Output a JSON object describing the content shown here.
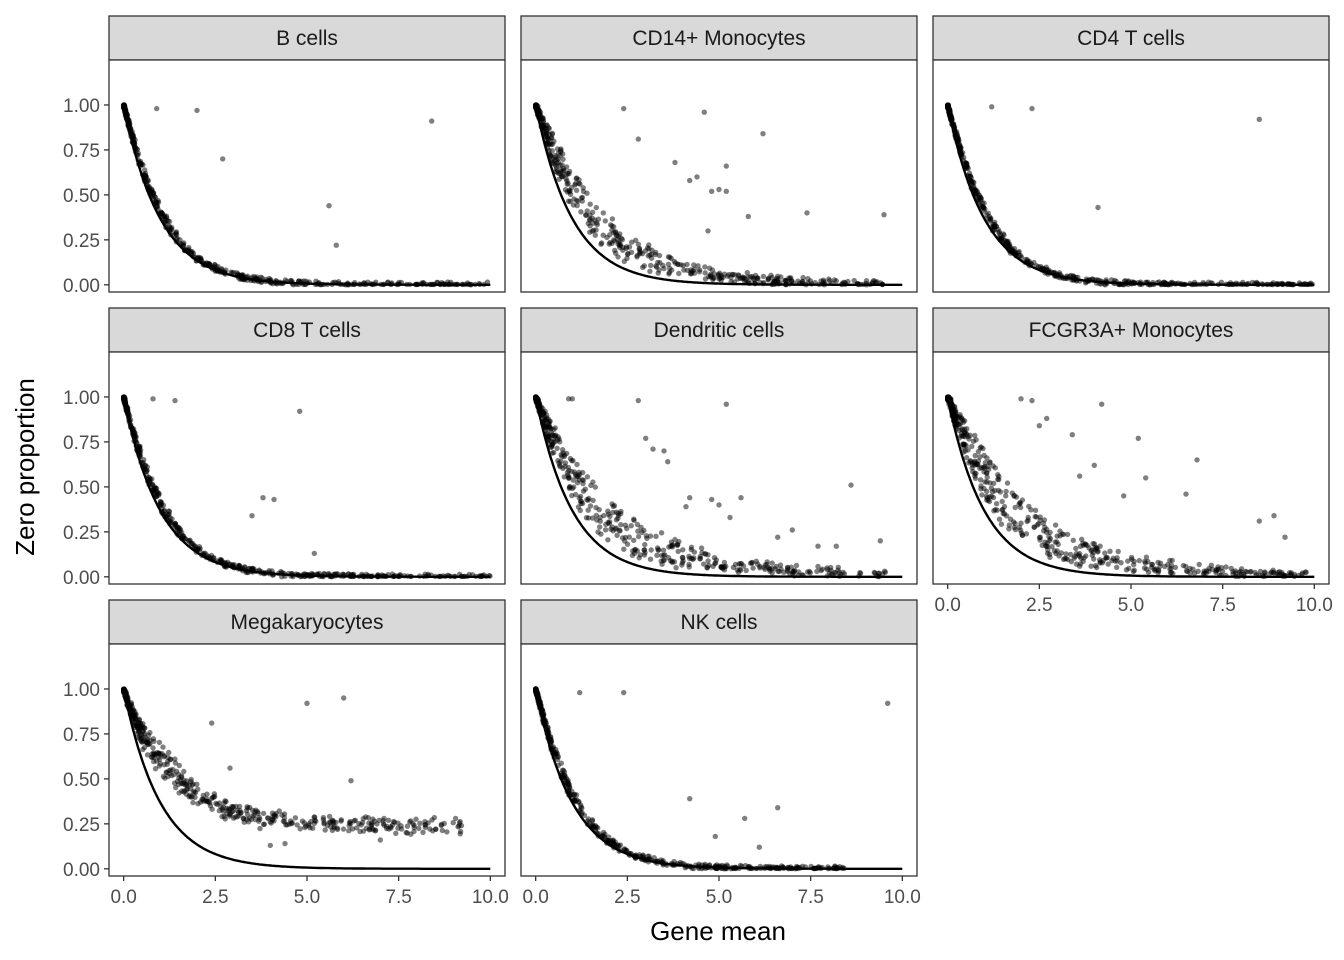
{
  "chart_data": {
    "type": "scatter",
    "layout": "facet-wrap",
    "xlabel": "Gene mean",
    "ylabel": "Zero proportion",
    "xlim": [
      -0.4,
      10.4
    ],
    "ylim": [
      -0.04,
      1.25
    ],
    "x_ticks": [
      0,
      2.5,
      5,
      7.5,
      10
    ],
    "x_tick_labels": [
      "0.0",
      "2.5",
      "5.0",
      "7.5",
      "10.0"
    ],
    "y_ticks": [
      0,
      0.25,
      0.5,
      0.75,
      1
    ],
    "y_tick_labels": [
      "0.00",
      "0.25",
      "0.50",
      "0.75",
      "1.00"
    ],
    "grid": false,
    "point_color": "#000000",
    "point_alpha": 0.5,
    "curve": {
      "type": "line",
      "formula": "exp(-x)",
      "color": "#000000"
    },
    "facets": [
      {
        "name": "B cells",
        "excess": 0.18,
        "spread": 0.8,
        "xmax": 10.0,
        "outliers": [
          [
            0.9,
            0.98
          ],
          [
            2.0,
            0.97
          ],
          [
            2.7,
            0.7
          ],
          [
            8.4,
            0.91
          ],
          [
            5.6,
            0.44
          ],
          [
            5.8,
            0.22
          ]
        ]
      },
      {
        "name": "CD14+ Monocytes",
        "excess": 0.38,
        "spread": 2.0,
        "xmax": 9.5,
        "outliers": [
          [
            2.4,
            0.98
          ],
          [
            4.6,
            0.96
          ],
          [
            6.2,
            0.84
          ],
          [
            2.8,
            0.81
          ],
          [
            3.8,
            0.68
          ],
          [
            5.2,
            0.66
          ],
          [
            4.2,
            0.58
          ],
          [
            4.4,
            0.6
          ],
          [
            5.0,
            0.53
          ],
          [
            4.8,
            0.52
          ],
          [
            5.2,
            0.52
          ],
          [
            5.8,
            0.38
          ],
          [
            7.4,
            0.4
          ],
          [
            9.5,
            0.39
          ],
          [
            4.7,
            0.3
          ]
        ]
      },
      {
        "name": "CD4 T cells",
        "excess": 0.2,
        "spread": 0.8,
        "xmax": 10.0,
        "outliers": [
          [
            1.2,
            0.99
          ],
          [
            2.3,
            0.98
          ],
          [
            8.5,
            0.92
          ],
          [
            4.1,
            0.43
          ]
        ]
      },
      {
        "name": "CD8 T cells",
        "excess": 0.2,
        "spread": 0.8,
        "xmax": 10.0,
        "outliers": [
          [
            0.8,
            0.99
          ],
          [
            1.4,
            0.98
          ],
          [
            4.8,
            0.92
          ],
          [
            3.8,
            0.44
          ],
          [
            4.1,
            0.43
          ],
          [
            3.5,
            0.34
          ],
          [
            5.2,
            0.13
          ]
        ]
      },
      {
        "name": "Dendritic cells",
        "excess": 0.38,
        "spread": 2.6,
        "xmax": 9.6,
        "outliers": [
          [
            0.9,
            0.99
          ],
          [
            1.0,
            0.99
          ],
          [
            2.8,
            0.98
          ],
          [
            5.2,
            0.96
          ],
          [
            3.0,
            0.77
          ],
          [
            3.2,
            0.71
          ],
          [
            3.5,
            0.7
          ],
          [
            3.6,
            0.64
          ],
          [
            4.2,
            0.44
          ],
          [
            4.8,
            0.43
          ],
          [
            5.0,
            0.4
          ],
          [
            5.6,
            0.44
          ],
          [
            4.1,
            0.39
          ],
          [
            8.6,
            0.51
          ],
          [
            5.3,
            0.33
          ],
          [
            7.0,
            0.26
          ],
          [
            6.6,
            0.22
          ],
          [
            7.7,
            0.17
          ],
          [
            8.2,
            0.17
          ],
          [
            9.4,
            0.2
          ]
        ]
      },
      {
        "name": "FCGR3A+ Monocytes",
        "excess": 0.42,
        "spread": 2.4,
        "xmax": 9.8,
        "outliers": [
          [
            2.0,
            0.99
          ],
          [
            2.3,
            0.98
          ],
          [
            4.2,
            0.96
          ],
          [
            2.7,
            0.88
          ],
          [
            2.5,
            0.84
          ],
          [
            5.2,
            0.77
          ],
          [
            3.4,
            0.79
          ],
          [
            6.8,
            0.65
          ],
          [
            4.0,
            0.62
          ],
          [
            5.4,
            0.55
          ],
          [
            6.5,
            0.46
          ],
          [
            3.6,
            0.56
          ],
          [
            8.5,
            0.31
          ],
          [
            8.9,
            0.34
          ],
          [
            9.2,
            0.22
          ],
          [
            4.8,
            0.45
          ]
        ]
      },
      {
        "name": "Megakaryocytes",
        "excess": 0.32,
        "spread": 1.3,
        "xmax": 9.3,
        "floor": 0.24,
        "outliers": [
          [
            5.0,
            0.92
          ],
          [
            6.0,
            0.95
          ],
          [
            2.4,
            0.81
          ],
          [
            2.9,
            0.56
          ],
          [
            6.2,
            0.49
          ],
          [
            4.0,
            0.13
          ],
          [
            4.4,
            0.14
          ],
          [
            7.0,
            0.16
          ],
          [
            7.1,
            0.28
          ]
        ]
      },
      {
        "name": "NK cells",
        "excess": 0.2,
        "spread": 0.8,
        "xmax": 8.5,
        "outliers": [
          [
            1.2,
            0.98
          ],
          [
            2.4,
            0.98
          ],
          [
            9.6,
            0.92
          ],
          [
            4.2,
            0.39
          ],
          [
            6.6,
            0.34
          ],
          [
            5.7,
            0.28
          ],
          [
            4.9,
            0.18
          ],
          [
            6.1,
            0.12
          ]
        ]
      }
    ]
  }
}
